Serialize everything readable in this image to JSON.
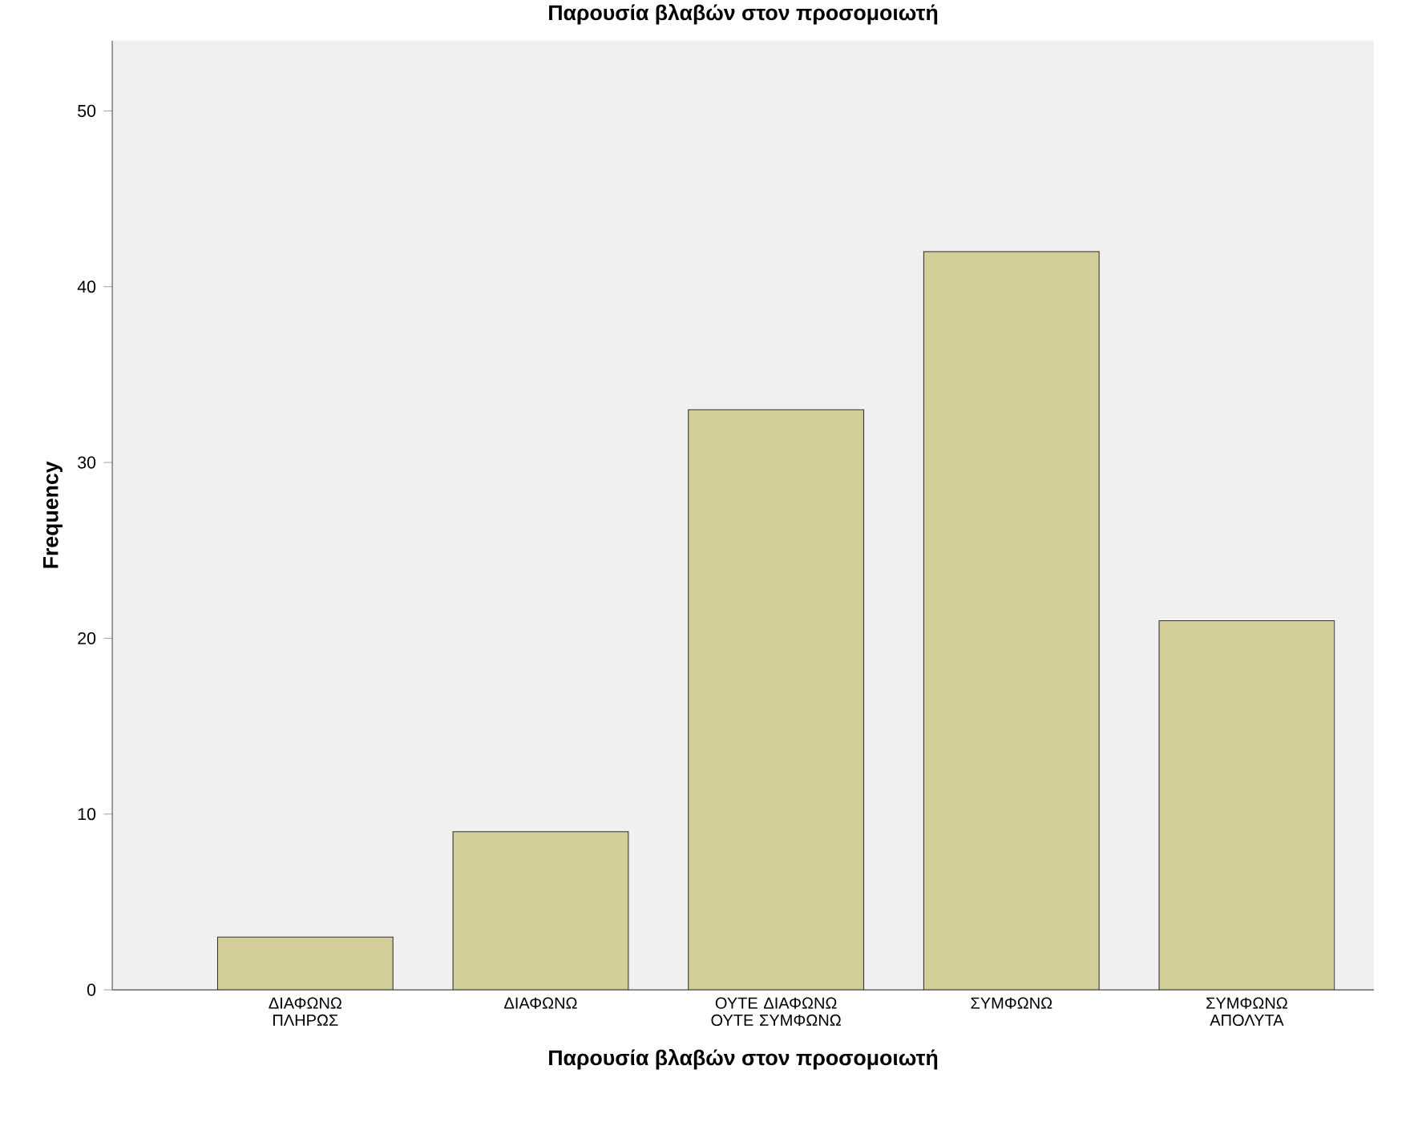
{
  "chart_data": {
    "type": "bar",
    "title": "Παρουσία βλαβών στον προσομοιωτή",
    "xlabel": "Παρουσία βλαβών στον προσομοιωτή",
    "ylabel": "Frequency",
    "categories": [
      "ΔΙΑΦΩΝΩ ΠΛΗΡΩΣ",
      "ΔΙΑΦΩΝΩ",
      "ΟΥΤΕ ΔΙΑΦΩΝΩ ΟΥΤΕ ΣΥΜΦΩΝΩ",
      "ΣΥΜΦΩΝΩ",
      "ΣΥΜΦΩΝΩ ΑΠΟΛΥΤΑ"
    ],
    "values": [
      3,
      9,
      33,
      42,
      21
    ],
    "color": "#d3ce97",
    "ylim": [
      0,
      54
    ],
    "yticks": [
      0,
      10,
      20,
      30,
      40,
      50
    ],
    "grid": false
  }
}
